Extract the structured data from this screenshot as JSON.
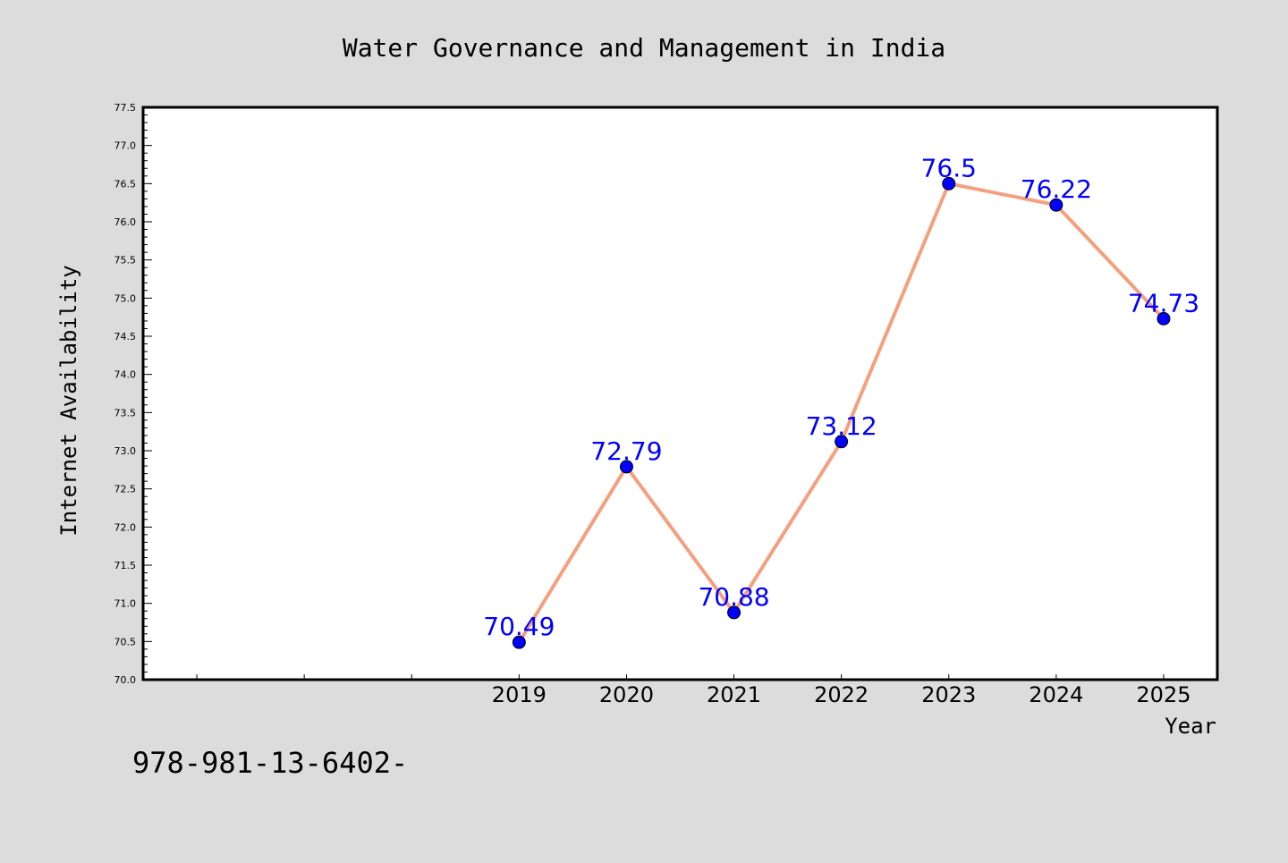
{
  "chart_data": {
    "type": "line",
    "title": "Water Governance and Management in India",
    "xlabel": "Year",
    "ylabel": "Internet Availability",
    "categories": [
      "2019",
      "2020",
      "2021",
      "2022",
      "2023",
      "2024",
      "2025"
    ],
    "series": [
      {
        "values": [
          70.49,
          72.79,
          70.88,
          73.12,
          76.5,
          76.22,
          74.73
        ],
        "labels": [
          "70.49",
          "72.79",
          "70.88",
          "73.12",
          "76.5",
          "76.22",
          "74.73"
        ]
      }
    ],
    "ylim": [
      70.0,
      77.5
    ],
    "yticks": [
      "70.0",
      "70.5",
      "71.0",
      "71.5",
      "72.0",
      "72.5",
      "73.0",
      "73.5",
      "74.0",
      "74.5",
      "75.0",
      "75.5",
      "76.0",
      "76.5",
      "77.0",
      "77.5"
    ],
    "grid": false,
    "line_color": "#f4a07e",
    "marker_color": "#0000ff",
    "label_color": "#0000ff",
    "background_color": "#dcdcdc",
    "plot_background": "#ffffff"
  },
  "footer": {
    "code": "978-981-13-6402-"
  }
}
